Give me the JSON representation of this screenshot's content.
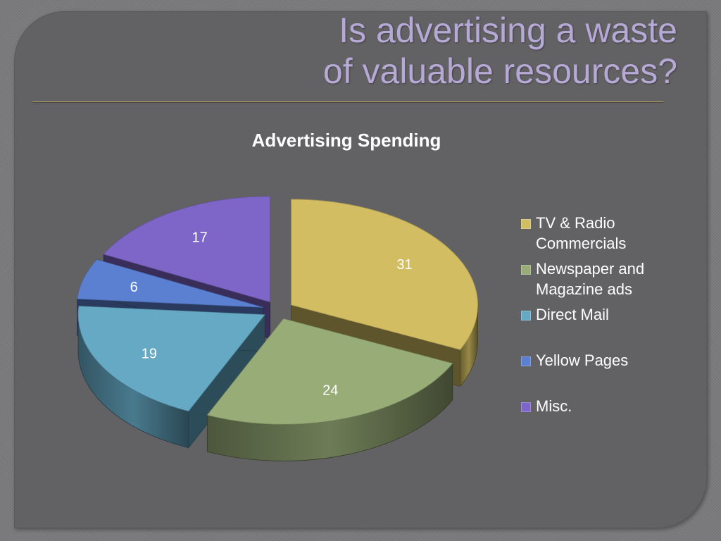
{
  "slide": {
    "title_lines": [
      "Is advertising a waste",
      "of valuable resources?"
    ]
  },
  "chart_data": {
    "type": "pie",
    "title": "Advertising Spending",
    "categories": [
      "TV & Radio Commercials",
      "Newspaper and Magazine ads",
      "Direct Mail",
      "Yellow Pages",
      "Misc."
    ],
    "values": [
      31,
      24,
      19,
      6,
      17
    ],
    "data_labels": [
      "31",
      "24",
      "19",
      "6",
      "17"
    ],
    "colors": [
      "#d2bd63",
      "#98ac78",
      "#65a9c5",
      "#5b80d1",
      "#7e66c9"
    ],
    "exploded": true,
    "style": "3d",
    "legend": "right"
  }
}
